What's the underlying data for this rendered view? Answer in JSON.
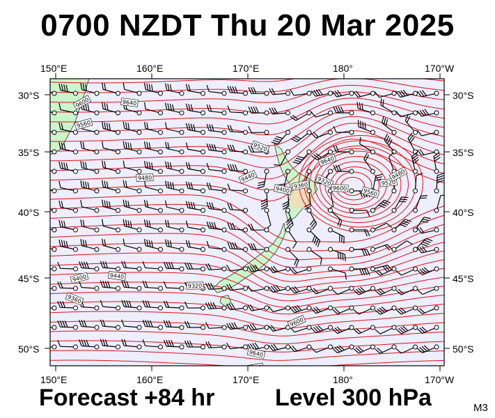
{
  "title": "0700 NZDT Thu 20 Mar 2025",
  "forecast_label": "Forecast +84 hr",
  "level_label": "Level 300 hPa",
  "map_code": "M3",
  "lon_labels": [
    "150°E",
    "160°E",
    "170°E",
    "180°",
    "170°W"
  ],
  "lat_labels": [
    "30°S",
    "35°S",
    "40°S",
    "45°S",
    "50°S"
  ],
  "contour_labels": [
    "9600",
    "9640",
    "9560",
    "9520",
    "9480",
    "9440",
    "9400",
    "9360",
    "9320"
  ],
  "colors": {
    "contour": "#e01010",
    "ocean": "#eeeeff",
    "land": "#ccf5cc",
    "frame": "#000000"
  }
}
